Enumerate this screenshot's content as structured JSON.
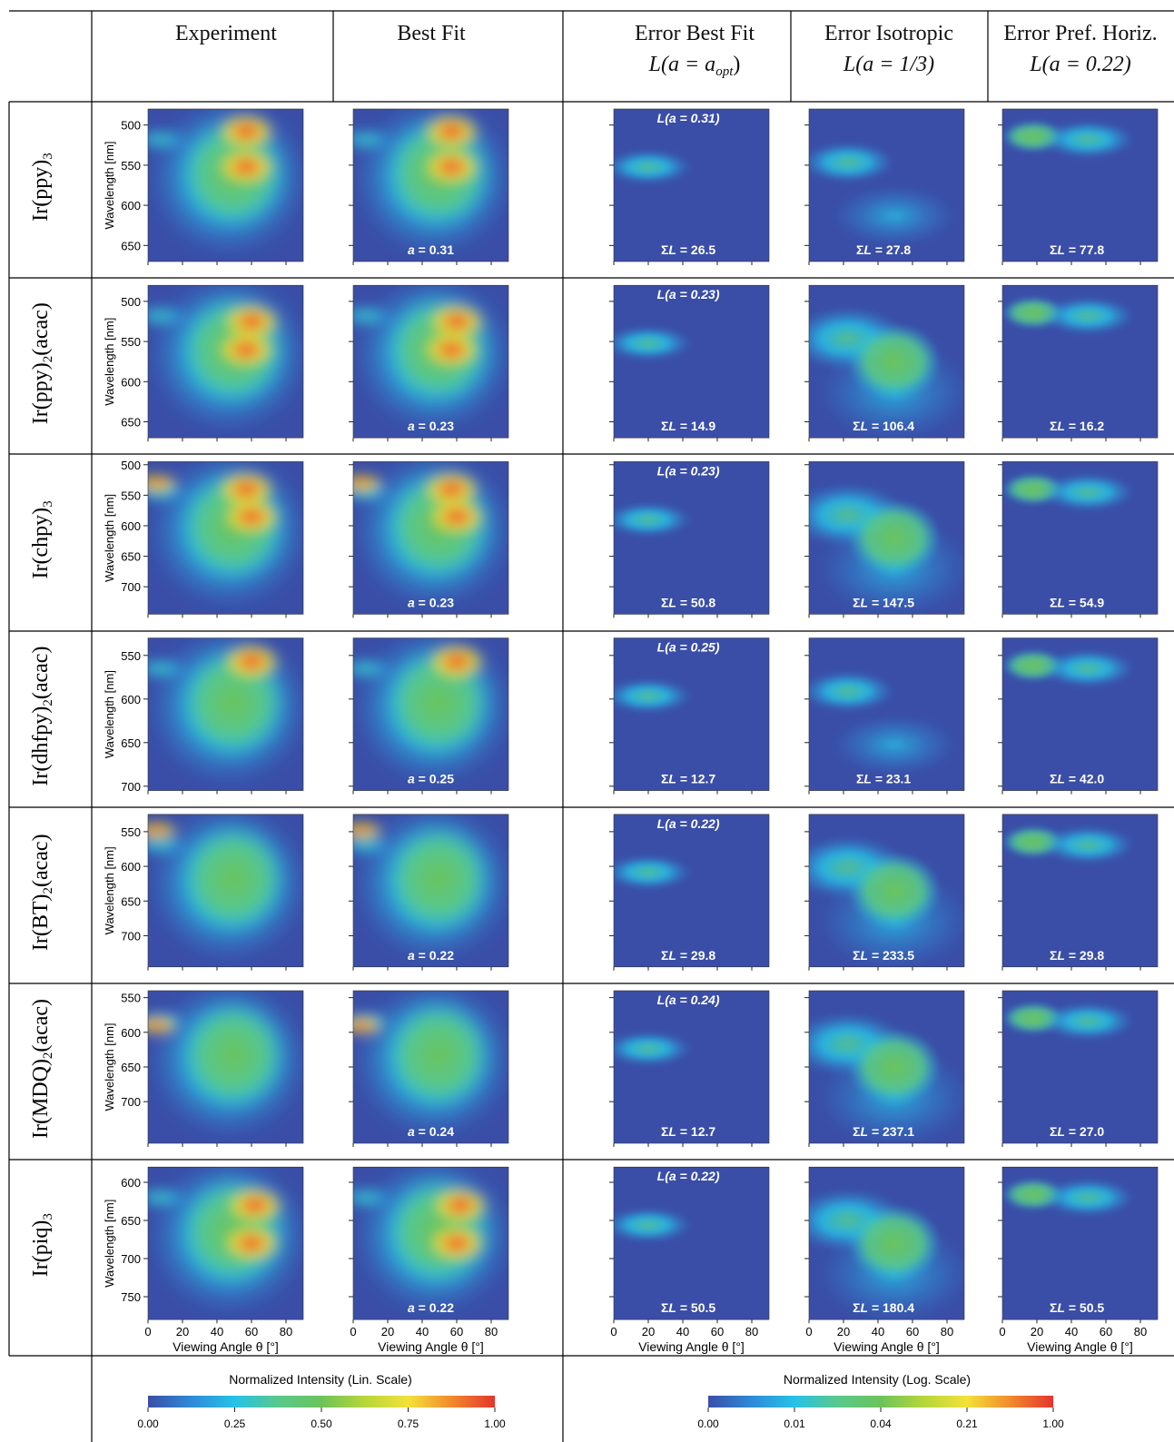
{
  "header": {
    "experiment": "Experiment",
    "best_fit": "Best Fit",
    "err_best_fit": {
      "line1": "Error Best Fit",
      "line2": "L(a = a",
      "sub": "opt",
      "tail": ")"
    },
    "err_isotropic": {
      "line1": "Error Isotropic",
      "line2": "L(a = 1/3)"
    },
    "err_pref_horiz": {
      "line1": "Error Pref. Horiz.",
      "line2": "L(a = 0.22)"
    }
  },
  "axis": {
    "ylabel": "Wavelength [nm]",
    "xlabel": "Viewing Angle θ [°]",
    "xticks": [
      "0",
      "20",
      "40",
      "60",
      "80"
    ]
  },
  "colorbars": {
    "linear": {
      "title": "Normalized Intensity (Lin. Scale)",
      "ticks": [
        "0.00",
        "0.25",
        "0.50",
        "0.75",
        "1.00"
      ]
    },
    "log": {
      "title": "Normalized Intensity (Log. Scale)",
      "ticks": [
        "0.00",
        "0.01",
        "0.04",
        "0.21",
        "1.00"
      ]
    }
  },
  "colormap": [
    "#3a4ea7",
    "#2f8ad8",
    "#26c2e8",
    "#58c98c",
    "#6cc35a",
    "#b6d63a",
    "#f3e23a",
    "#f28a2c",
    "#e4352d"
  ],
  "chart_data": {
    "type": "heatmap",
    "xlim": [
      0,
      90
    ],
    "rows": [
      {
        "label": "Ir(ppy)",
        "sub": "3",
        "tail": "",
        "ylim": [
          480,
          670
        ],
        "yticks": [
          "500",
          "550",
          "600",
          "650"
        ],
        "a_fit": "0.31",
        "L_label": "L(a = 0.31)",
        "sumL": [
          "26.5",
          "27.8",
          "77.8"
        ],
        "red": [
          [
            57,
            508
          ],
          [
            57,
            552
          ]
        ]
      },
      {
        "label": "Ir(ppy)",
        "sub": "2",
        "tail": "(acac)",
        "ylim": [
          480,
          670
        ],
        "yticks": [
          "500",
          "550",
          "600",
          "650"
        ],
        "a_fit": "0.23",
        "L_label": "L(a = 0.23)",
        "sumL": [
          "14.9",
          "106.4",
          "16.2"
        ],
        "red": [
          [
            60,
            525
          ],
          [
            57,
            560
          ]
        ]
      },
      {
        "label": "Ir(chpy)",
        "sub": "3",
        "tail": "",
        "ylim": [
          495,
          745
        ],
        "yticks": [
          "500",
          "550",
          "600",
          "650",
          "700"
        ],
        "a_fit": "0.23",
        "L_label": "L(a = 0.23)",
        "sumL": [
          "50.8",
          "147.5",
          "54.9"
        ],
        "red": [
          [
            5,
            530
          ],
          [
            57,
            540
          ],
          [
            60,
            585
          ]
        ]
      },
      {
        "label": "Ir(dhfpy)",
        "sub": "2",
        "tail": "(acac)",
        "ylim": [
          530,
          705
        ],
        "yticks": [
          "550",
          "600",
          "650",
          "700"
        ],
        "a_fit": "0.25",
        "L_label": "L(a = 0.25)",
        "sumL": [
          "12.7",
          "23.1",
          "42.0"
        ],
        "red": [
          [
            60,
            557
          ]
        ]
      },
      {
        "label": "Ir(BT)",
        "sub": "2",
        "tail": "(acac)",
        "ylim": [
          525,
          745
        ],
        "yticks": [
          "550",
          "600",
          "650",
          "700"
        ],
        "a_fit": "0.22",
        "L_label": "L(a = 0.22)",
        "sumL": [
          "29.8",
          "233.5",
          "29.8"
        ],
        "red": [
          [
            5,
            548
          ]
        ]
      },
      {
        "label": "Ir(MDQ)",
        "sub": "2",
        "tail": "(acac)",
        "ylim": [
          540,
          760
        ],
        "yticks": [
          "550",
          "600",
          "650",
          "700"
        ],
        "a_fit": "0.24",
        "L_label": "L(a = 0.24)",
        "sumL": [
          "12.7",
          "237.1",
          "27.0"
        ],
        "red": [
          [
            5,
            590
          ]
        ]
      },
      {
        "label": "Ir(piq)",
        "sub": "3",
        "tail": "",
        "ylim": [
          580,
          780
        ],
        "yticks": [
          "600",
          "650",
          "700",
          "750"
        ],
        "a_fit": "0.22",
        "L_label": "L(a = 0.22)",
        "sumL": [
          "50.5",
          "180.4",
          "50.5"
        ],
        "red": [
          [
            62,
            630
          ],
          [
            60,
            680
          ]
        ]
      }
    ]
  }
}
